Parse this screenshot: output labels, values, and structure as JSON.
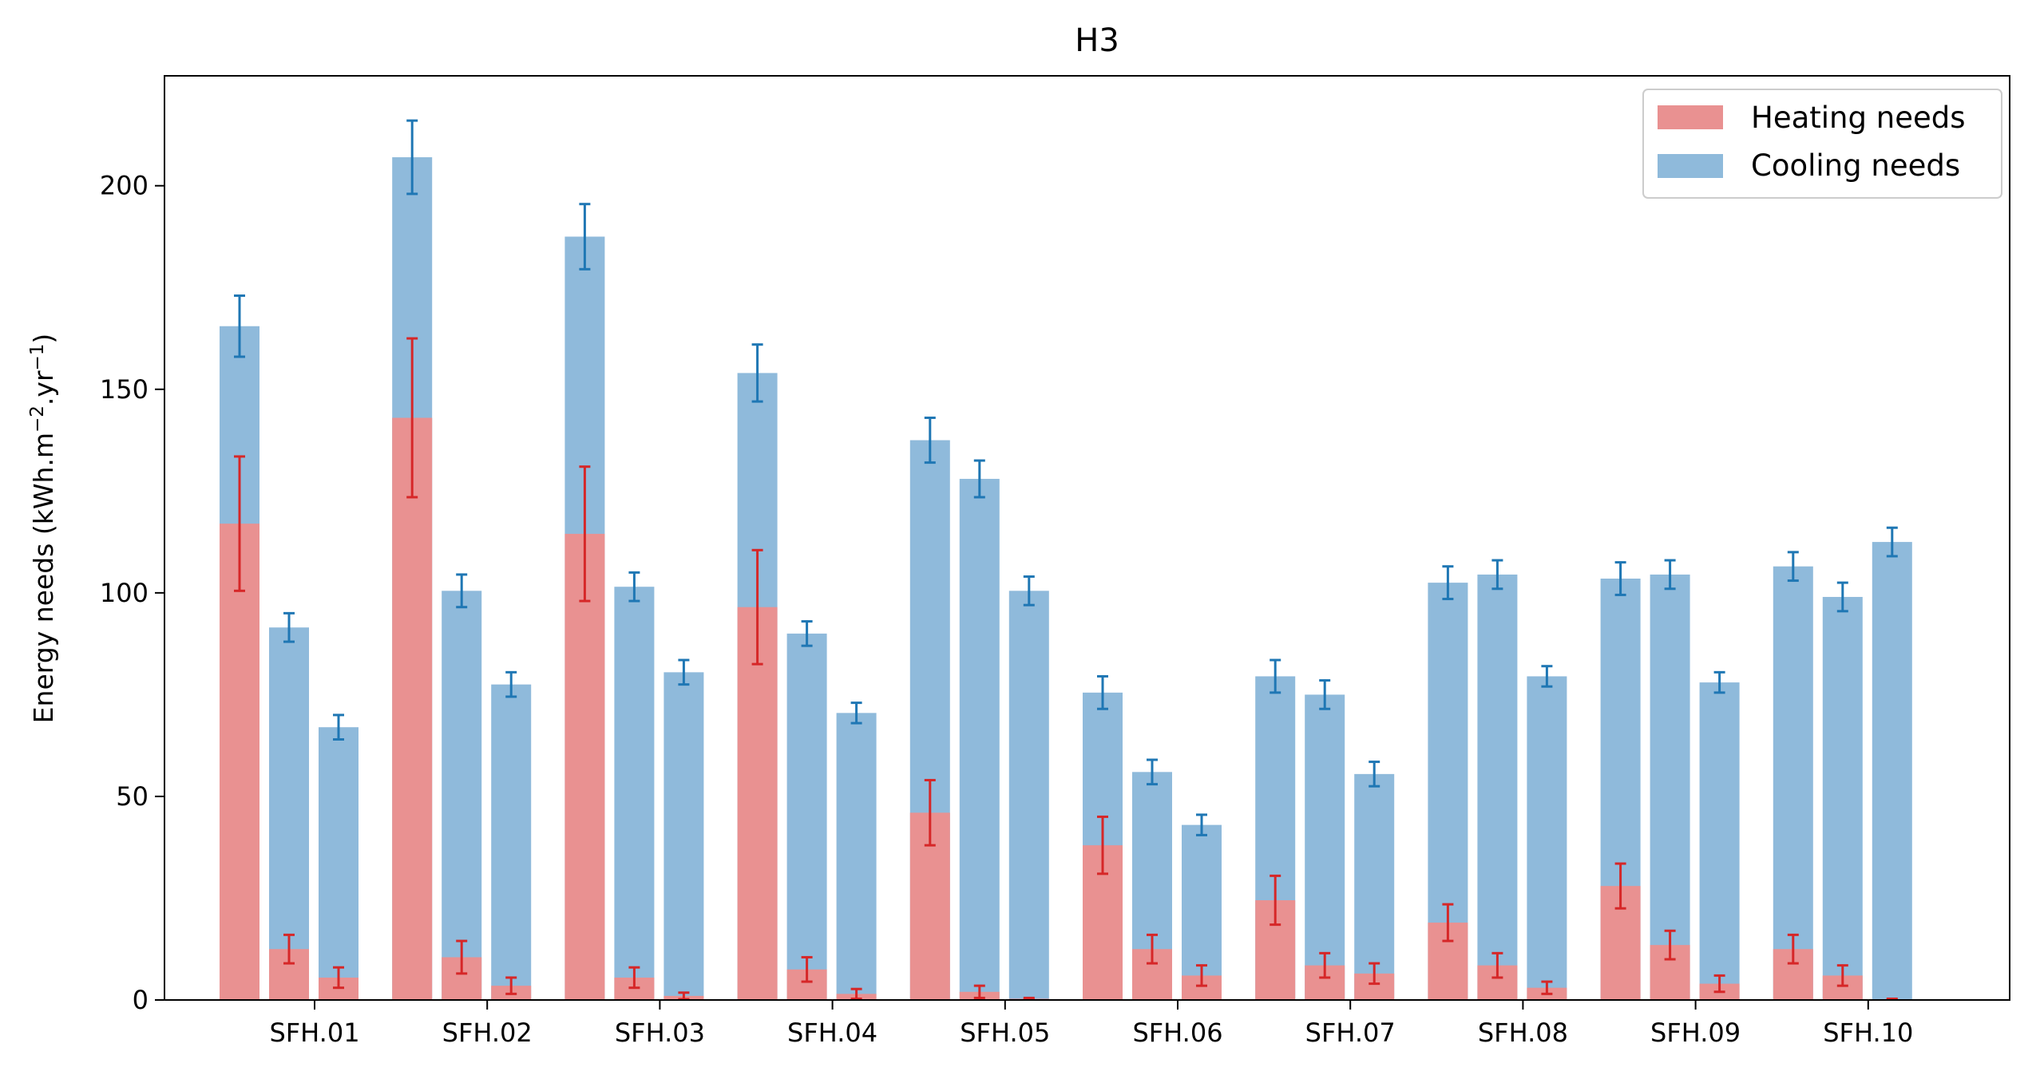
{
  "chart_data": {
    "type": "bar",
    "title": "H3",
    "xlabel": "",
    "ylabel_main": "Energy needs (kWh.m",
    "ylabel_sup1": "−2",
    "ylabel_mid": ".yr",
    "ylabel_sup2": "−1",
    "ylabel_end": ")",
    "categories": [
      "SFH.01",
      "SFH.02",
      "SFH.03",
      "SFH.04",
      "SFH.05",
      "SFH.06",
      "SFH.07",
      "SFH.08",
      "SFH.09",
      "SFH.10"
    ],
    "bars_per_category": 3,
    "ylim": [
      0,
      227
    ],
    "yticks": [
      0,
      50,
      100,
      150,
      200
    ],
    "grid": false,
    "legend_position": "top-right",
    "series": [
      {
        "name": "Heating needs",
        "color": "#e99191",
        "error_color": "#d62728",
        "values": [
          [
            117,
            12.5,
            5.5
          ],
          [
            143,
            10.5,
            3.5
          ],
          [
            114.5,
            5.5,
            1
          ],
          [
            96.5,
            7.5,
            1.5
          ],
          [
            46,
            2,
            0.3
          ],
          [
            38,
            12.5,
            6
          ],
          [
            24.5,
            8.5,
            6.5
          ],
          [
            19,
            8.5,
            3
          ],
          [
            28,
            13.5,
            4
          ],
          [
            12.5,
            6,
            0.2
          ]
        ],
        "errors": [
          [
            16.5,
            3.5,
            2.5
          ],
          [
            19.5,
            4,
            2
          ],
          [
            16.5,
            2.5,
            0.8
          ],
          [
            14,
            3,
            1.2
          ],
          [
            8,
            1.5,
            0.2
          ],
          [
            7,
            3.5,
            2.5
          ],
          [
            6,
            3,
            2.5
          ],
          [
            4.5,
            3,
            1.5
          ],
          [
            5.5,
            3.5,
            2
          ],
          [
            3.5,
            2.5,
            0.1
          ]
        ]
      },
      {
        "name": "Cooling needs",
        "color": "#8fbadb",
        "error_color": "#1f77b4",
        "values": [
          [
            165.5,
            91.5,
            67
          ],
          [
            207,
            100.5,
            77.5
          ],
          [
            187.5,
            101.5,
            80.5
          ],
          [
            154,
            90,
            70.5
          ],
          [
            137.5,
            128,
            100.5
          ],
          [
            75.5,
            56,
            43
          ],
          [
            79.5,
            75,
            55.5
          ],
          [
            102.5,
            104.5,
            79.5
          ],
          [
            103.5,
            104.5,
            78
          ],
          [
            106.5,
            99,
            112.5
          ]
        ],
        "errors": [
          [
            7.5,
            3.5,
            3
          ],
          [
            9,
            4,
            3
          ],
          [
            8,
            3.5,
            3
          ],
          [
            7,
            3,
            2.5
          ],
          [
            5.5,
            4.5,
            3.5
          ],
          [
            4,
            3,
            2.5
          ],
          [
            4,
            3.5,
            3
          ],
          [
            4,
            3.5,
            2.5
          ],
          [
            4,
            3.5,
            2.5
          ],
          [
            3.5,
            3.5,
            3.5
          ]
        ]
      }
    ]
  }
}
